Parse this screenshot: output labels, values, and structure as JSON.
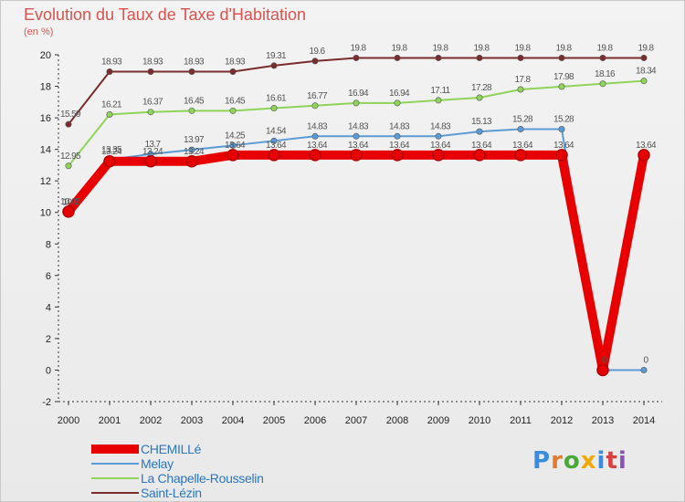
{
  "title": "Evolution du Taux de Taxe d'Habitation",
  "unit_label": "(en %)",
  "logo_text": "Proxiti",
  "chart_data": {
    "type": "line",
    "title": "Evolution du Taux de Taxe d'Habitation",
    "ylabel": "(en %)",
    "xlabel": "",
    "ylim": [
      -2,
      20
    ],
    "yticks": [
      -2,
      0,
      2,
      4,
      6,
      8,
      10,
      12,
      14,
      16,
      18,
      20
    ],
    "grid": false,
    "legend_position": "bottom-left",
    "x": [
      "2000",
      "2001",
      "2002",
      "2003",
      "2004",
      "2005",
      "2006",
      "2007",
      "2008",
      "2009",
      "2010",
      "2011",
      "2012",
      "2013",
      "2014"
    ],
    "series": [
      {
        "name": "Saint-Lézin",
        "color": "#7b2c2c",
        "values": [
          15.59,
          18.93,
          18.93,
          18.93,
          18.93,
          19.31,
          19.6,
          19.8,
          19.8,
          19.8,
          19.8,
          19.8,
          19.8,
          19.8,
          19.8
        ],
        "labels": [
          "15.59",
          "18.93",
          "18.93",
          "18.93",
          "18.93",
          "19.31",
          "19.6",
          "19.8",
          "19.8",
          "19.8",
          "19.8",
          "19.8",
          "19.8",
          "19.8",
          "19.8"
        ]
      },
      {
        "name": "La Chapelle-Rousselin",
        "color": "#8fd45a",
        "values": [
          12.95,
          16.21,
          16.37,
          16.45,
          16.45,
          16.61,
          16.77,
          16.94,
          16.94,
          17.11,
          17.28,
          17.8,
          17.98,
          18.16,
          18.34
        ],
        "labels": [
          "12.95",
          "16.21",
          "16.37",
          "16.45",
          "16.45",
          "16.61",
          "16.77",
          "16.94",
          "16.94",
          "17.11",
          "17.28",
          "17.8",
          "17.98",
          "18.16",
          "18.34"
        ]
      },
      {
        "name": "Melay",
        "color": "#5b9bd5",
        "values": [
          10.0,
          13.35,
          13.7,
          13.97,
          14.25,
          14.54,
          14.83,
          14.83,
          14.83,
          14.83,
          15.13,
          15.28,
          15.28,
          0,
          0
        ],
        "labels": [
          "10.0",
          "13.35",
          "13.7",
          "13.97",
          "14.25",
          "14.54",
          "14.83",
          "14.83",
          "14.83",
          "14.83",
          "15.13",
          "15.28",
          "15.28",
          "0",
          "0"
        ]
      },
      {
        "name": "CHEMILLé",
        "color": "#e80000",
        "values": [
          10.05,
          13.24,
          13.24,
          13.24,
          13.64,
          13.64,
          13.64,
          13.64,
          13.64,
          13.64,
          13.64,
          13.64,
          13.64,
          0,
          13.64
        ],
        "labels": [
          "10.05",
          "13.24",
          "13.24",
          "13.24",
          "13.64",
          "13.64",
          "13.64",
          "13.64",
          "13.64",
          "13.64",
          "13.64",
          "13.64",
          "13.64",
          "0",
          "13.64"
        ]
      }
    ],
    "legend": [
      "CHEMILLé",
      "Melay",
      "La Chapelle-Rousselin",
      "Saint-Lézin"
    ]
  }
}
